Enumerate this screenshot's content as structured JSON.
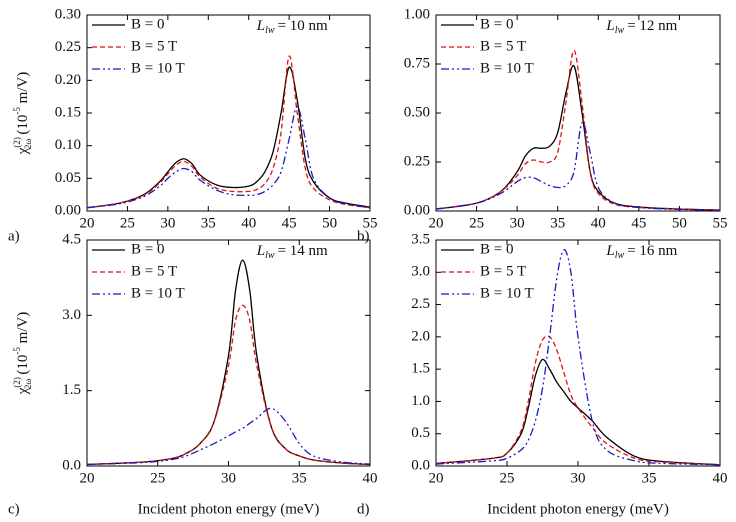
{
  "chart_data": [
    {
      "type": "line",
      "panel_label": "a)",
      "annotation": {
        "symbol": "L",
        "subscript": "lw",
        "text": "= 10 nm"
      },
      "y_label": {
        "symbol": "χ",
        "superscript": "(2)",
        "subscript": "2ω",
        "unit_open": "(10",
        "unit_exp": "-5",
        "unit_close": " m/V)"
      },
      "xlim": [
        20,
        55
      ],
      "ylim": [
        0,
        0.3
      ],
      "xticks": [
        20,
        25,
        30,
        35,
        40,
        45,
        50,
        55
      ],
      "yticks": [
        {
          "value": 0,
          "label": "0.00"
        },
        {
          "value": 0.05,
          "label": "0.05"
        },
        {
          "value": 0.1,
          "label": "0.10"
        },
        {
          "value": 0.15,
          "label": "0.15"
        },
        {
          "value": 0.2,
          "label": "0.20"
        },
        {
          "value": 0.25,
          "label": "0.25"
        },
        {
          "value": 0.3,
          "label": "0.30"
        }
      ],
      "x": [
        20,
        24,
        27,
        29,
        30,
        31,
        32,
        33,
        34,
        36,
        38,
        40,
        41,
        42,
        43,
        44,
        45,
        46,
        47,
        48,
        50,
        52,
        55
      ],
      "series": [
        {
          "name": "B = 0",
          "color": "#000000",
          "style": "solid",
          "values": [
            0.005,
            0.012,
            0.025,
            0.045,
            0.06,
            0.074,
            0.08,
            0.072,
            0.055,
            0.04,
            0.036,
            0.038,
            0.045,
            0.06,
            0.09,
            0.15,
            0.22,
            0.17,
            0.08,
            0.045,
            0.02,
            0.012,
            0.006
          ]
        },
        {
          "name": "B = 5 T",
          "color": "#e01010",
          "style": "dashed",
          "values": [
            0.005,
            0.012,
            0.024,
            0.043,
            0.057,
            0.07,
            0.076,
            0.068,
            0.052,
            0.035,
            0.03,
            0.03,
            0.033,
            0.042,
            0.065,
            0.12,
            0.237,
            0.15,
            0.065,
            0.035,
            0.017,
            0.01,
            0.005
          ]
        },
        {
          "name": "B = 10 T",
          "color": "#1a1ac0",
          "style": "dash-dot-dot",
          "values": [
            0.005,
            0.011,
            0.022,
            0.038,
            0.05,
            0.06,
            0.065,
            0.06,
            0.047,
            0.032,
            0.025,
            0.024,
            0.025,
            0.03,
            0.04,
            0.06,
            0.11,
            0.16,
            0.11,
            0.05,
            0.02,
            0.011,
            0.005
          ]
        }
      ]
    },
    {
      "type": "line",
      "panel_label": "b)",
      "annotation": {
        "symbol": "L",
        "subscript": "lw",
        "text": "= 12 nm"
      },
      "xlim": [
        20,
        55
      ],
      "ylim": [
        0,
        1
      ],
      "xticks": [
        20,
        25,
        30,
        35,
        40,
        45,
        50,
        55
      ],
      "yticks": [
        {
          "value": 0,
          "label": "0.00"
        },
        {
          "value": 0.25,
          "label": "0.25"
        },
        {
          "value": 0.5,
          "label": "0.50"
        },
        {
          "value": 0.75,
          "label": "0.75"
        },
        {
          "value": 1,
          "label": "1.00"
        }
      ],
      "x": [
        20,
        25,
        28,
        30,
        31,
        32,
        33,
        34,
        35,
        36,
        37,
        38,
        39,
        40,
        42,
        45,
        50,
        55
      ],
      "series": [
        {
          "name": "B = 0",
          "color": "#000000",
          "style": "solid",
          "values": [
            0.01,
            0.04,
            0.1,
            0.2,
            0.28,
            0.32,
            0.32,
            0.33,
            0.4,
            0.6,
            0.74,
            0.5,
            0.2,
            0.1,
            0.04,
            0.02,
            0.01,
            0.005
          ]
        },
        {
          "name": "B = 5 T",
          "color": "#e01010",
          "style": "dashed",
          "values": [
            0.01,
            0.04,
            0.1,
            0.18,
            0.24,
            0.26,
            0.25,
            0.25,
            0.3,
            0.55,
            0.82,
            0.55,
            0.2,
            0.09,
            0.035,
            0.018,
            0.01,
            0.005
          ]
        },
        {
          "name": "B = 10 T",
          "color": "#1a1ac0",
          "style": "dash-dot-dot",
          "values": [
            0.01,
            0.04,
            0.09,
            0.15,
            0.17,
            0.17,
            0.15,
            0.13,
            0.12,
            0.13,
            0.2,
            0.45,
            0.3,
            0.12,
            0.04,
            0.018,
            0.008,
            0.004
          ]
        }
      ]
    },
    {
      "type": "line",
      "panel_label": "c)",
      "annotation": {
        "symbol": "L",
        "subscript": "lw",
        "text": "= 14 nm"
      },
      "y_label": {
        "symbol": "χ",
        "superscript": "(2)",
        "subscript": "2ω",
        "unit_open": "(10",
        "unit_exp": "-5",
        "unit_close": " m/V)"
      },
      "x_label": "Incident photon energy (meV)",
      "xlim": [
        20,
        40
      ],
      "ylim": [
        0,
        4.5
      ],
      "xticks": [
        20,
        25,
        30,
        35,
        40
      ],
      "yticks": [
        {
          "value": 0,
          "label": "0.0"
        },
        1.5,
        {
          "value": 3,
          "label": "3.0"
        },
        4.5
      ],
      "x": [
        20,
        24,
        26,
        27,
        28,
        29,
        30,
        30.5,
        31,
        31.5,
        32,
        33,
        34,
        35,
        36,
        38,
        40
      ],
      "series": [
        {
          "name": "B = 0",
          "color": "#000000",
          "style": "solid",
          "values": [
            0.03,
            0.08,
            0.15,
            0.25,
            0.45,
            0.9,
            2.2,
            3.5,
            4.1,
            3.5,
            2.2,
            0.8,
            0.35,
            0.2,
            0.12,
            0.06,
            0.03
          ]
        },
        {
          "name": "B = 5 T",
          "color": "#e01010",
          "style": "dashed",
          "values": [
            0.03,
            0.08,
            0.15,
            0.25,
            0.45,
            0.9,
            2.0,
            2.9,
            3.2,
            2.9,
            2.0,
            0.8,
            0.35,
            0.2,
            0.12,
            0.06,
            0.03
          ]
        },
        {
          "name": "B = 10 T",
          "color": "#1a1ac0",
          "style": "dash-dot-dot",
          "values": [
            0.03,
            0.07,
            0.13,
            0.2,
            0.32,
            0.45,
            0.6,
            0.68,
            0.75,
            0.85,
            0.95,
            1.15,
            0.9,
            0.45,
            0.2,
            0.08,
            0.04
          ]
        }
      ]
    },
    {
      "type": "line",
      "panel_label": "d)",
      "annotation": {
        "symbol": "L",
        "subscript": "lw",
        "text": "= 16 nm"
      },
      "x_label": "Incident photon energy (meV)",
      "xlim": [
        20,
        40
      ],
      "ylim": [
        0,
        3.5
      ],
      "xticks": [
        20,
        25,
        30,
        35,
        40
      ],
      "yticks": [
        {
          "value": 0,
          "label": "0.0"
        },
        0.5,
        {
          "value": 1,
          "label": "1.0"
        },
        1.5,
        {
          "value": 2,
          "label": "2.0"
        },
        2.5,
        {
          "value": 3,
          "label": "3.0"
        },
        3.5
      ],
      "x": [
        20,
        24,
        25,
        26,
        26.5,
        27,
        27.5,
        28,
        28.5,
        29,
        29.5,
        30,
        31,
        32,
        34,
        36,
        40
      ],
      "series": [
        {
          "name": "B = 0",
          "color": "#000000",
          "style": "solid",
          "values": [
            0.04,
            0.12,
            0.2,
            0.5,
            0.9,
            1.4,
            1.65,
            1.5,
            1.3,
            1.15,
            1.0,
            0.9,
            0.7,
            0.45,
            0.15,
            0.07,
            0.02
          ]
        },
        {
          "name": "B = 5 T",
          "color": "#e01010",
          "style": "dashed",
          "values": [
            0.04,
            0.12,
            0.2,
            0.55,
            1.0,
            1.6,
            1.95,
            2.0,
            1.8,
            1.45,
            1.1,
            0.9,
            0.6,
            0.35,
            0.12,
            0.06,
            0.02
          ]
        },
        {
          "name": "B = 10 T",
          "color": "#1a1ac0",
          "style": "dash-dot-dot",
          "values": [
            0.03,
            0.08,
            0.12,
            0.25,
            0.4,
            0.7,
            1.2,
            2.0,
            2.9,
            3.35,
            3.0,
            2.0,
            0.7,
            0.25,
            0.08,
            0.04,
            0.02
          ]
        }
      ]
    }
  ]
}
